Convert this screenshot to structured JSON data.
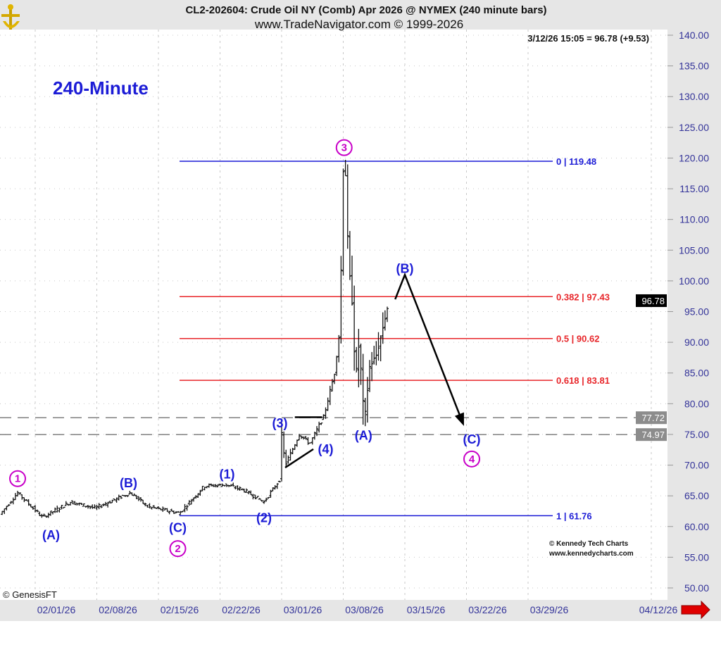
{
  "header": {
    "title": "CL2-202604:  Crude Oil NY (Comb) Apr 2026 @ NYMEX  (240 minute bars)",
    "subtitle": "www.TradeNavigator.com © 1999-2026",
    "last_quote": "3/12/26 15:05 = 96.78 (+9.53)"
  },
  "timeframe_label": "240-Minute",
  "credits": {
    "genesis": "© GenesisFT",
    "kennedy_line1": "© Kennedy Tech Charts",
    "kennedy_line2": "www.kennedycharts.com"
  },
  "colors": {
    "blue": "#1c1cd6",
    "red": "#e8262a",
    "magenta": "#c800c8",
    "axis_text": "#333399"
  },
  "chart_data": {
    "type": "ohlc",
    "title": "CL2-202604: Crude Oil NY (Comb) Apr 2026 @ NYMEX (240 minute bars)",
    "ylim": [
      47,
      142
    ],
    "y_ticks": [
      "140.00",
      "135.00",
      "130.00",
      "125.00",
      "120.00",
      "115.00",
      "110.00",
      "105.00",
      "100.00",
      "95.00",
      "90.00",
      "85.00",
      "80.00",
      "75.00",
      "70.00",
      "65.00",
      "60.00",
      "55.00",
      "50.00"
    ],
    "x_ticks": [
      {
        "label": "02/01/26",
        "day": 0
      },
      {
        "label": "02/08/26",
        "day": 7
      },
      {
        "label": "02/15/26",
        "day": 14
      },
      {
        "label": "02/22/26",
        "day": 21
      },
      {
        "label": "03/01/26",
        "day": 28
      },
      {
        "label": "03/08/26",
        "day": 35
      },
      {
        "label": "03/15/26",
        "day": 42
      },
      {
        "label": "03/22/26",
        "day": 49
      },
      {
        "label": "03/29/26",
        "day": 56
      },
      {
        "label": "04/12/26",
        "day": 70
      }
    ],
    "price_path": [
      [
        -4,
        62.0
      ],
      [
        -2,
        65.5
      ],
      [
        0.8,
        61.5
      ],
      [
        4,
        64.0
      ],
      [
        6.8,
        63.0
      ],
      [
        10.8,
        65.5
      ],
      [
        12.8,
        63.2
      ],
      [
        16.4,
        62.2
      ],
      [
        19.2,
        66.6
      ],
      [
        21.6,
        66.8
      ],
      [
        23.6,
        66.0
      ],
      [
        26,
        64.0
      ],
      [
        27.8,
        67.7
      ],
      [
        28,
        75.0
      ],
      [
        28.4,
        70.0
      ],
      [
        30,
        75.0
      ],
      [
        31.2,
        73.5
      ],
      [
        32.8,
        78.0
      ],
      [
        34,
        85.0
      ],
      [
        34.6,
        92.0
      ],
      [
        35,
        118.0
      ],
      [
        35.2,
        119.3
      ],
      [
        35.6,
        103.0
      ],
      [
        36,
        96.5
      ],
      [
        36.4,
        84.0
      ],
      [
        36.8,
        90.0
      ],
      [
        37.4,
        77.0
      ],
      [
        38,
        86.0
      ],
      [
        38.8,
        88.0
      ],
      [
        39.6,
        93.0
      ],
      [
        40.2,
        96.8
      ]
    ],
    "price_boxes": [
      {
        "label": "96.78",
        "price": 96.78,
        "style": "last"
      },
      {
        "label": "77.72",
        "price": 77.72,
        "style": "level"
      },
      {
        "label": "74.97",
        "price": 74.97,
        "style": "level"
      }
    ],
    "dashed_levels": [
      77.72,
      74.97
    ],
    "fib_levels": [
      {
        "label": "0 | 119.48",
        "price": 119.48,
        "color": "#1c1cd6"
      },
      {
        "label": "0.382 | 97.43",
        "price": 97.43,
        "color": "#e8262a"
      },
      {
        "label": "0.5 | 90.62",
        "price": 90.62,
        "color": "#e8262a"
      },
      {
        "label": "0.618 | 83.81",
        "price": 83.81,
        "color": "#e8262a"
      },
      {
        "label": "1 | 61.76",
        "price": 61.76,
        "color": "#1c1cd6"
      }
    ],
    "wave_labels": [
      {
        "text": "1",
        "day": -2,
        "price": 67.8,
        "style": "circle"
      },
      {
        "text": "(A)",
        "day": 1.8,
        "price": 58.6,
        "style": "paren"
      },
      {
        "text": "(B)",
        "day": 10.6,
        "price": 67.1,
        "style": "paren"
      },
      {
        "text": "(C)",
        "day": 16.2,
        "price": 59.8,
        "style": "paren"
      },
      {
        "text": "2",
        "day": 16.2,
        "price": 56.4,
        "style": "circle"
      },
      {
        "text": "(1)",
        "day": 21.8,
        "price": 68.5,
        "style": "paren"
      },
      {
        "text": "(2)",
        "day": 26,
        "price": 61.4,
        "style": "paren"
      },
      {
        "text": "(3)",
        "day": 27.8,
        "price": 76.8,
        "style": "paren"
      },
      {
        "text": "(4)",
        "day": 33,
        "price": 72.6,
        "style": "paren"
      },
      {
        "text": "3",
        "day": 35.1,
        "price": 121.7,
        "style": "circle"
      },
      {
        "text": "(A)",
        "day": 37.3,
        "price": 74.8,
        "style": "paren"
      },
      {
        "text": "(B)",
        "day": 42,
        "price": 102.0,
        "style": "paren"
      },
      {
        "text": "(C)",
        "day": 49.6,
        "price": 74.2,
        "style": "paren"
      },
      {
        "text": "4",
        "day": 49.6,
        "price": 71.0,
        "style": "circle"
      }
    ],
    "projection_arrow": [
      [
        40.9,
        97.0
      ],
      [
        42,
        101.0
      ],
      [
        48.6,
        76.8
      ]
    ],
    "triangle_lines": [
      [
        [
          29.5,
          77.8
        ],
        [
          32.6,
          77.8
        ]
      ],
      [
        [
          28.4,
          69.6
        ],
        [
          31.6,
          72.6
        ]
      ]
    ]
  }
}
